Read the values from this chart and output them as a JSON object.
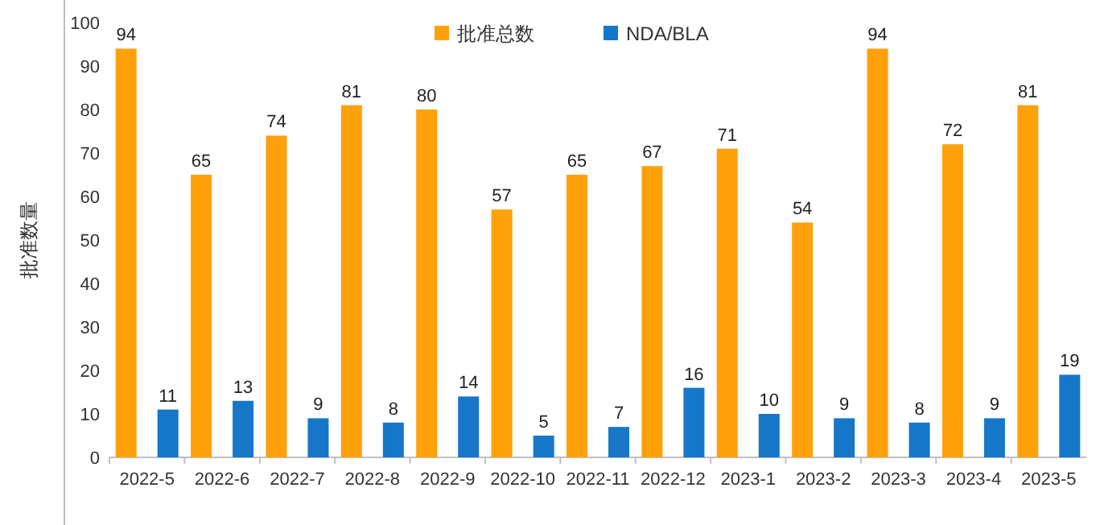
{
  "chart_data": {
    "type": "bar",
    "ylabel": "批准数量",
    "categories": [
      "2022-5",
      "2022-6",
      "2022-7",
      "2022-8",
      "2022-9",
      "2022-10",
      "2022-11",
      "2022-12",
      "2023-1",
      "2023-2",
      "2023-3",
      "2023-4",
      "2023-5"
    ],
    "series": [
      {
        "name": "批准总数",
        "color": "#ffa10a",
        "values": [
          94,
          65,
          74,
          81,
          80,
          57,
          65,
          67,
          71,
          54,
          94,
          72,
          81
        ]
      },
      {
        "name": "NDA/BLA",
        "color": "#1677c8",
        "values": [
          11,
          13,
          9,
          8,
          14,
          5,
          7,
          16,
          10,
          9,
          8,
          9,
          19
        ]
      }
    ],
    "ylim": [
      0,
      100
    ],
    "yticks": [
      0,
      10,
      20,
      30,
      40,
      50,
      60,
      70,
      80,
      90,
      100
    ],
    "data_labels": true,
    "legend": "top",
    "grid": false
  }
}
